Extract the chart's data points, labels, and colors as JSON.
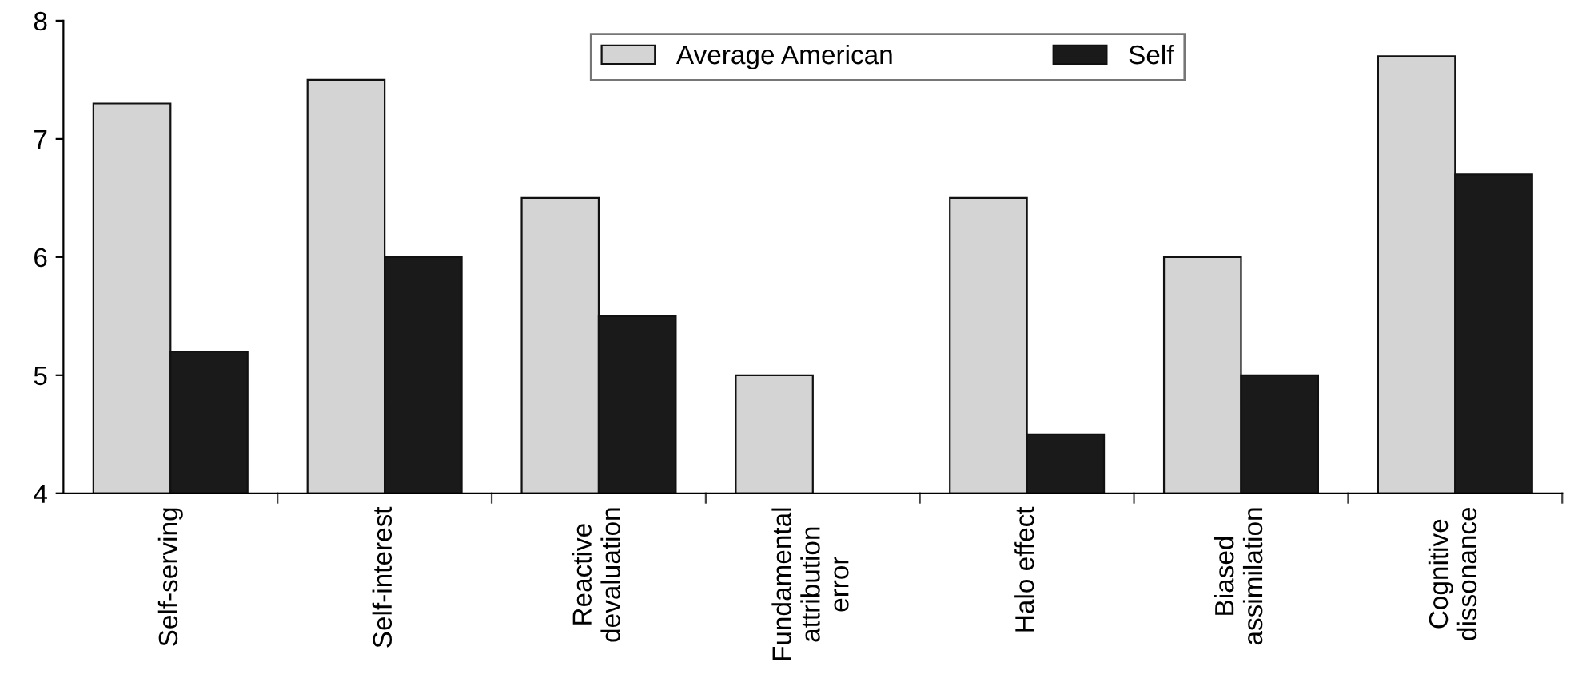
{
  "chart_data": {
    "type": "bar",
    "categories": [
      "Self-serving",
      "Self-interest",
      "Reactive\ndevaluation",
      "Fundamental\nattribution\nerror",
      "Halo effect",
      "Biased\nassimilation",
      "Cognitive\ndissonance"
    ],
    "series": [
      {
        "name": "Average American",
        "color": "#d4d4d4",
        "values": [
          7.3,
          7.5,
          6.5,
          5.0,
          6.5,
          6.0,
          7.7
        ]
      },
      {
        "name": "Self",
        "color": "#1a1a1a",
        "values": [
          5.2,
          6.0,
          5.5,
          null,
          4.5,
          5.0,
          6.7
        ]
      }
    ],
    "ylim": [
      4,
      8
    ],
    "yticks": [
      4,
      5,
      6,
      7,
      8
    ],
    "grid": false,
    "legend": "top"
  }
}
